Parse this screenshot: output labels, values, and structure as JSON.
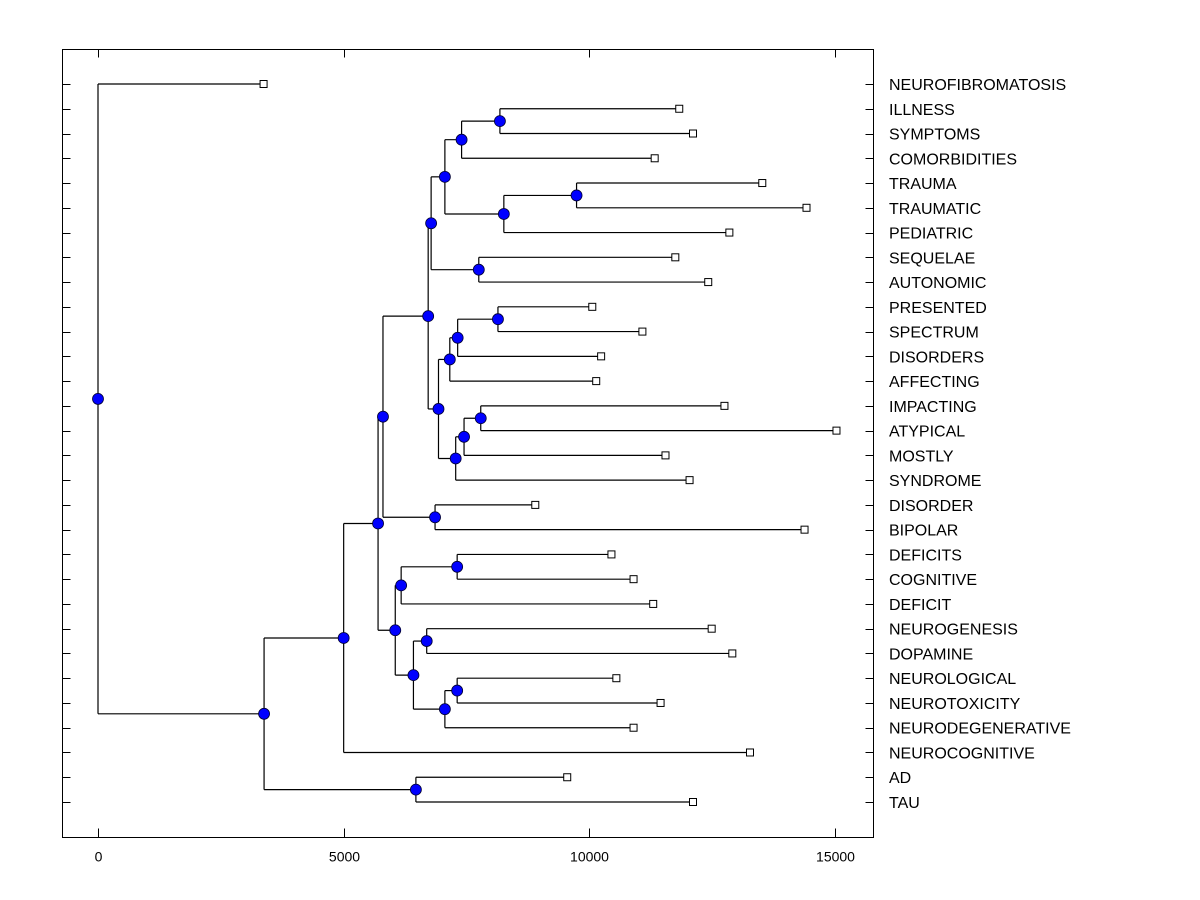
{
  "chart_data": {
    "type": "dendrogram",
    "title": "",
    "xlabel": "",
    "ylabel": "",
    "xlim": [
      -700,
      15800
    ],
    "xticks": [
      0,
      5000,
      10000,
      15000
    ],
    "xtick_labels": [
      "0",
      "5000",
      "10000",
      "15000"
    ],
    "grid": false,
    "leaf_labels_position": "right",
    "node_color": "#0000ff",
    "leaves": [
      {
        "label": "NEUROFIBROMATOSIS",
        "value": 3370
      },
      {
        "label": "ILLNESS",
        "value": 11830
      },
      {
        "label": "SYMPTOMS",
        "value": 12110
      },
      {
        "label": "COMORBIDITIES",
        "value": 11330
      },
      {
        "label": "TRAUMA",
        "value": 13520
      },
      {
        "label": "TRAUMATIC",
        "value": 14420
      },
      {
        "label": "PEDIATRIC",
        "value": 12850
      },
      {
        "label": "SEQUELAE",
        "value": 11750
      },
      {
        "label": "AUTONOMIC",
        "value": 12420
      },
      {
        "label": "PRESENTED",
        "value": 10060
      },
      {
        "label": "SPECTRUM",
        "value": 11080
      },
      {
        "label": "DISORDERS",
        "value": 10240
      },
      {
        "label": "AFFECTING",
        "value": 10140
      },
      {
        "label": "IMPACTING",
        "value": 12750
      },
      {
        "label": "ATYPICAL",
        "value": 15030
      },
      {
        "label": "MOSTLY",
        "value": 11550
      },
      {
        "label": "SYNDROME",
        "value": 12040
      },
      {
        "label": "DISORDER",
        "value": 8900
      },
      {
        "label": "BIPOLAR",
        "value": 14380
      },
      {
        "label": "DEFICITS",
        "value": 10450
      },
      {
        "label": "COGNITIVE",
        "value": 10900
      },
      {
        "label": "DEFICIT",
        "value": 11300
      },
      {
        "label": "NEUROGENESIS",
        "value": 12490
      },
      {
        "label": "DOPAMINE",
        "value": 12910
      },
      {
        "label": "NEUROLOGICAL",
        "value": 10550
      },
      {
        "label": "NEUROTOXICITY",
        "value": 11450
      },
      {
        "label": "NEURODEGENERATIVE",
        "value": 10900
      },
      {
        "label": "NEUROCOGNITIVE",
        "value": 13270
      },
      {
        "label": "AD",
        "value": 9550
      },
      {
        "label": "TAU",
        "value": 12110
      }
    ],
    "tree": {
      "value": 0,
      "children": [
        {
          "leaf": 0
        },
        {
          "value": 3380,
          "children": [
            {
              "value": 5000,
              "children": [
                {
                  "value": 5700,
                  "children": [
                    {
                      "value": 5800,
                      "children": [
                        {
                          "value": 6720,
                          "children": [
                            {
                              "value": 6780,
                              "children": [
                                {
                                  "value": 7060,
                                  "children": [
                                    {
                                      "value": 7400,
                                      "children": [
                                        {
                                          "value": 8180,
                                          "children": [
                                            {
                                              "leaf": 1
                                            },
                                            {
                                              "leaf": 2
                                            }
                                          ]
                                        },
                                        {
                                          "leaf": 3
                                        }
                                      ]
                                    },
                                    {
                                      "value": 8260,
                                      "children": [
                                        {
                                          "value": 9740,
                                          "children": [
                                            {
                                              "leaf": 4
                                            },
                                            {
                                              "leaf": 5
                                            }
                                          ]
                                        },
                                        {
                                          "leaf": 6
                                        }
                                      ]
                                    }
                                  ]
                                },
                                {
                                  "value": 7750,
                                  "children": [
                                    {
                                      "leaf": 7
                                    },
                                    {
                                      "leaf": 8
                                    }
                                  ]
                                }
                              ]
                            },
                            {
                              "value": 6930,
                              "children": [
                                {
                                  "value": 7160,
                                  "children": [
                                    {
                                      "value": 7320,
                                      "children": [
                                        {
                                          "value": 8140,
                                          "children": [
                                            {
                                              "leaf": 9
                                            },
                                            {
                                              "leaf": 10
                                            }
                                          ]
                                        },
                                        {
                                          "leaf": 11
                                        }
                                      ]
                                    },
                                    {
                                      "leaf": 12
                                    }
                                  ]
                                },
                                {
                                  "value": 7280,
                                  "children": [
                                    {
                                      "value": 7450,
                                      "children": [
                                        {
                                          "value": 7790,
                                          "children": [
                                            {
                                              "leaf": 13
                                            },
                                            {
                                              "leaf": 14
                                            }
                                          ]
                                        },
                                        {
                                          "leaf": 15
                                        }
                                      ]
                                    },
                                    {
                                      "leaf": 16
                                    }
                                  ]
                                }
                              ]
                            }
                          ]
                        },
                        {
                          "value": 6860,
                          "children": [
                            {
                              "leaf": 17
                            },
                            {
                              "leaf": 18
                            }
                          ]
                        }
                      ]
                    },
                    {
                      "value": 6050,
                      "children": [
                        {
                          "value": 6170,
                          "children": [
                            {
                              "value": 7310,
                              "children": [
                                {
                                  "leaf": 19
                                },
                                {
                                  "leaf": 20
                                }
                              ]
                            },
                            {
                              "leaf": 21
                            }
                          ]
                        },
                        {
                          "value": 6420,
                          "children": [
                            {
                              "value": 6690,
                              "children": [
                                {
                                  "leaf": 22
                                },
                                {
                                  "leaf": 23
                                }
                              ]
                            },
                            {
                              "value": 7060,
                              "children": [
                                {
                                  "value": 7310,
                                  "children": [
                                    {
                                      "leaf": 24
                                    },
                                    {
                                      "leaf": 25
                                    }
                                  ]
                                },
                                {
                                  "leaf": 26
                                }
                              ]
                            }
                          ]
                        }
                      ]
                    }
                  ]
                },
                {
                  "leaf": 27
                }
              ]
            },
            {
              "value": 6470,
              "children": [
                {
                  "leaf": 28
                },
                {
                  "leaf": 29
                }
              ]
            }
          ]
        }
      ]
    }
  }
}
